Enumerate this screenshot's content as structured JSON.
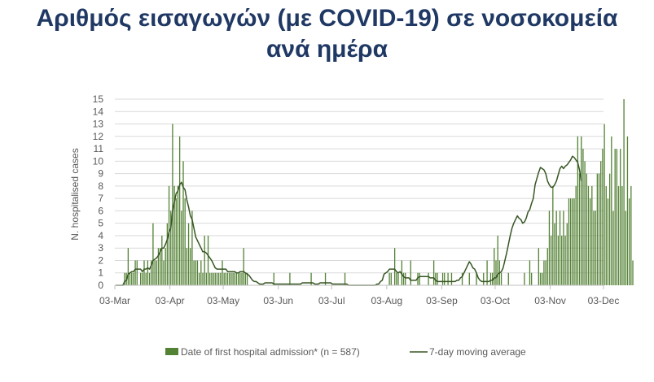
{
  "slide": {
    "title_line1": "Αριθμός εισαγωγών (με COVID-19) σε νοσοκομεία",
    "title_line2": "ανά ημέρα"
  },
  "chart_data": {
    "type": "bar",
    "title": "",
    "xlabel": "",
    "ylabel": "N. hospitalised cases",
    "ylim": [
      0,
      15
    ],
    "y_ticks": [
      0,
      1,
      2,
      3,
      4,
      5,
      6,
      7,
      8,
      9,
      10,
      11,
      12,
      13,
      14,
      15
    ],
    "x_tick_labels": [
      "03-Mar",
      "03-Apr",
      "03-May",
      "03-Jun",
      "03-Jul",
      "03-Aug",
      "03-Sep",
      "03-Oct",
      "03-Nov",
      "03-Dec"
    ],
    "x_tick_days": [
      0,
      31,
      61,
      92,
      122,
      153,
      184,
      214,
      245,
      275
    ],
    "x_start": "03-Mar",
    "grid": "horizontal",
    "legend_position": "bottom",
    "colors": {
      "bars": "#548235",
      "line": "#375623",
      "title": "#1f3864",
      "grid": "#d9d9d9",
      "axis": "#bfbfbf"
    },
    "series": [
      {
        "name": "Date of first hospital admission* (n = 587)",
        "kind": "bar",
        "values": [
          0,
          0,
          0,
          0,
          0,
          1,
          1,
          3,
          1,
          1,
          1,
          2,
          2,
          0,
          1,
          1,
          2,
          1,
          2,
          1,
          2,
          5,
          2,
          2,
          3,
          3,
          4,
          2,
          3,
          5,
          8,
          6,
          13,
          8,
          7,
          8,
          12,
          6,
          10,
          7,
          3,
          5,
          3,
          6,
          2,
          2,
          2,
          1,
          2,
          1,
          4,
          1,
          4,
          1,
          1,
          1,
          1,
          1,
          1,
          1,
          2,
          1,
          1,
          1,
          1,
          1,
          1,
          1,
          1,
          1,
          1,
          1,
          3,
          1,
          1,
          0,
          0,
          0,
          0,
          0,
          0,
          0,
          0,
          0,
          0,
          0,
          0,
          0,
          0,
          1,
          0,
          0,
          0,
          0,
          0,
          0,
          0,
          0,
          1,
          0,
          0,
          0,
          0,
          0,
          0,
          0,
          0,
          0,
          0,
          0,
          1,
          0,
          0,
          0,
          0,
          0,
          0,
          0,
          1,
          0,
          0,
          0,
          0,
          0,
          0,
          0,
          0,
          0,
          0,
          1,
          0,
          0,
          0,
          0,
          0,
          0,
          0,
          0,
          0,
          0,
          0,
          0,
          0,
          0,
          0,
          0,
          0,
          0,
          0,
          0,
          0,
          0,
          0,
          0,
          1,
          1,
          0,
          3,
          1,
          1,
          0,
          2,
          1,
          1,
          0,
          0,
          2,
          0,
          0,
          0,
          1,
          1,
          0,
          0,
          0,
          0,
          1,
          0,
          0,
          2,
          1,
          1,
          0,
          0,
          1,
          1,
          0,
          1,
          0,
          1,
          0,
          0,
          0,
          0,
          0,
          1,
          0,
          0,
          0,
          1,
          0,
          0,
          0,
          1,
          0,
          0,
          0,
          1,
          0,
          2,
          0,
          1,
          1,
          3,
          2,
          4,
          2,
          1,
          0,
          0,
          0,
          1,
          0,
          0,
          0,
          0,
          0,
          0,
          0,
          0,
          1,
          0,
          0,
          2,
          1,
          0,
          0,
          0,
          3,
          1,
          1,
          2,
          2,
          3,
          6,
          4,
          8,
          5,
          6,
          4,
          6,
          4,
          6,
          4,
          5,
          7,
          7,
          7,
          7,
          8,
          12,
          9,
          12,
          11,
          10,
          9,
          8,
          7,
          8,
          6,
          6,
          9,
          9,
          10,
          11,
          13,
          8,
          7,
          9,
          12,
          6,
          11,
          11,
          8,
          11,
          8,
          15,
          6,
          12,
          7,
          8,
          2
        ]
      },
      {
        "name": "7-day moving average",
        "kind": "line",
        "values": [
          0,
          0,
          0,
          0,
          0,
          0.3,
          0.4,
          0.9,
          1.0,
          1.1,
          1.1,
          1.3,
          1.3,
          1.3,
          1.3,
          1.1,
          1.3,
          1.3,
          1.4,
          1.3,
          1.6,
          2.0,
          2.1,
          2.2,
          2.4,
          2.7,
          3.0,
          3.0,
          3.3,
          3.7,
          4.3,
          4.6,
          6.0,
          6.7,
          7.4,
          7.6,
          8.1,
          8.3,
          7.9,
          7.7,
          6.9,
          6.3,
          5.6,
          5.3,
          4.6,
          3.9,
          3.6,
          3.3,
          3.0,
          2.7,
          2.7,
          2.6,
          2.4,
          2.2,
          2.0,
          1.7,
          1.4,
          1.3,
          1.3,
          1.3,
          1.3,
          1.3,
          1.3,
          1.1,
          1.1,
          1.1,
          1.1,
          1.1,
          1.0,
          1.0,
          1.1,
          1.1,
          1.1,
          1.0,
          0.9,
          0.8,
          0.6,
          0.4,
          0.3,
          0.3,
          0.2,
          0.1,
          0.1,
          0.1,
          0.2,
          0.2,
          0.2,
          0.2,
          0.2,
          0.1,
          0.1,
          0.1,
          0.1,
          0.1,
          0.1,
          0.1,
          0.1,
          0.1,
          0.1,
          0.1,
          0.1,
          0.1,
          0.1,
          0.1,
          0.1,
          0.2,
          0.2,
          0.2,
          0.2,
          0.2,
          0.2,
          0.2,
          0.1,
          0.1,
          0.1,
          0.2,
          0.2,
          0.2,
          0.2,
          0.2,
          0.2,
          0.2,
          0.1,
          0.1,
          0.1,
          0.1,
          0.1,
          0.1,
          0.1,
          0.1,
          0.1,
          0.0,
          0.0,
          0.0,
          0.0,
          0.0,
          0.0,
          0.0,
          0.0,
          0.0,
          0.0,
          0.0,
          0.0,
          0.0,
          0.0,
          0.0,
          0.0,
          0.1,
          0.1,
          0.3,
          0.4,
          0.9,
          1.0,
          1.1,
          1.3,
          1.3,
          1.3,
          1.3,
          1.1,
          1.0,
          1.1,
          0.9,
          0.7,
          0.6,
          0.6,
          0.6,
          0.4,
          0.4,
          0.4,
          0.4,
          0.6,
          0.7,
          0.7,
          0.7,
          0.7,
          0.7,
          0.7,
          0.6,
          0.6,
          0.6,
          0.4,
          0.3,
          0.3,
          0.3,
          0.3,
          0.3,
          0.3,
          0.3,
          0.3,
          0.3,
          0.3,
          0.3,
          0.4,
          0.4,
          0.6,
          0.7,
          1.0,
          1.3,
          1.6,
          1.9,
          1.7,
          1.4,
          1.3,
          1.0,
          0.6,
          0.4,
          0.3,
          0.3,
          0.3,
          0.3,
          0.3,
          0.4,
          0.4,
          0.6,
          0.6,
          0.9,
          1.0,
          1.1,
          1.4,
          2.0,
          2.6,
          3.3,
          4.0,
          4.6,
          5.0,
          5.3,
          5.6,
          5.4,
          5.3,
          5.0,
          5.1,
          5.4,
          5.9,
          6.1,
          6.6,
          7.0,
          8.1,
          8.6,
          9.1,
          9.5,
          9.4,
          9.3,
          9.0,
          8.4,
          8.1,
          7.9,
          7.9,
          8.1,
          8.4,
          8.9,
          9.4,
          9.6,
          9.4,
          9.6,
          9.7,
          9.9,
          10.1,
          10.4,
          10.3,
          10.1,
          9.9,
          9.3,
          8.4
        ]
      }
    ]
  }
}
